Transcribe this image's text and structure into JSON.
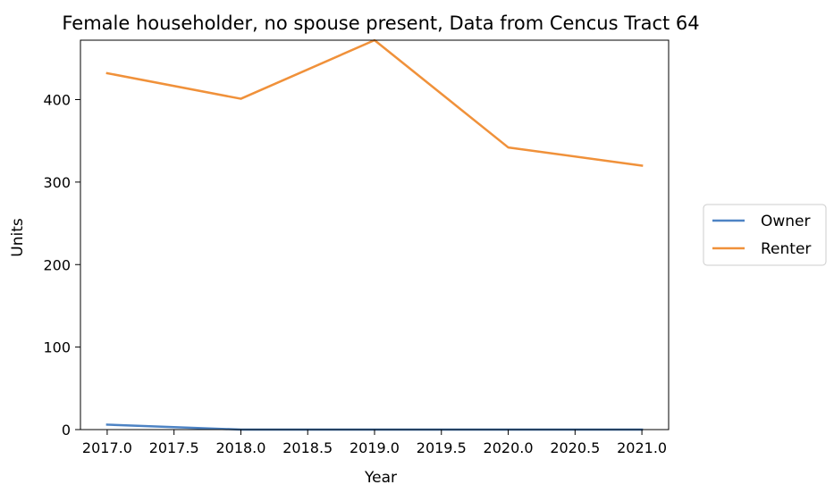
{
  "chart_data": {
    "type": "line",
    "title": "Female householder, no spouse present, Data from Cencus Tract 64",
    "xlabel": "Year",
    "ylabel": "Units",
    "xlim": [
      2016.8,
      2021.2
    ],
    "ylim": [
      0,
      472
    ],
    "x_ticks": [
      2017.0,
      2017.5,
      2018.0,
      2018.5,
      2019.0,
      2019.5,
      2020.0,
      2020.5,
      2021.0
    ],
    "x_tick_labels": [
      "2017.0",
      "2017.5",
      "2018.0",
      "2018.5",
      "2019.0",
      "2019.5",
      "2020.0",
      "2020.5",
      "2021.0"
    ],
    "y_ticks": [
      0,
      100,
      200,
      300,
      400
    ],
    "y_tick_labels": [
      "0",
      "100",
      "200",
      "300",
      "400"
    ],
    "grid": false,
    "legend_position": "outside-right",
    "series": [
      {
        "name": "Owner",
        "color": "#4d83c4",
        "x": [
          2017,
          2018,
          2019,
          2020,
          2021
        ],
        "values": [
          6,
          0,
          0,
          0,
          0
        ]
      },
      {
        "name": "Renter",
        "color": "#f0913a",
        "x": [
          2017,
          2018,
          2019,
          2020,
          2021
        ],
        "values": [
          432,
          401,
          472,
          342,
          320
        ]
      }
    ]
  }
}
